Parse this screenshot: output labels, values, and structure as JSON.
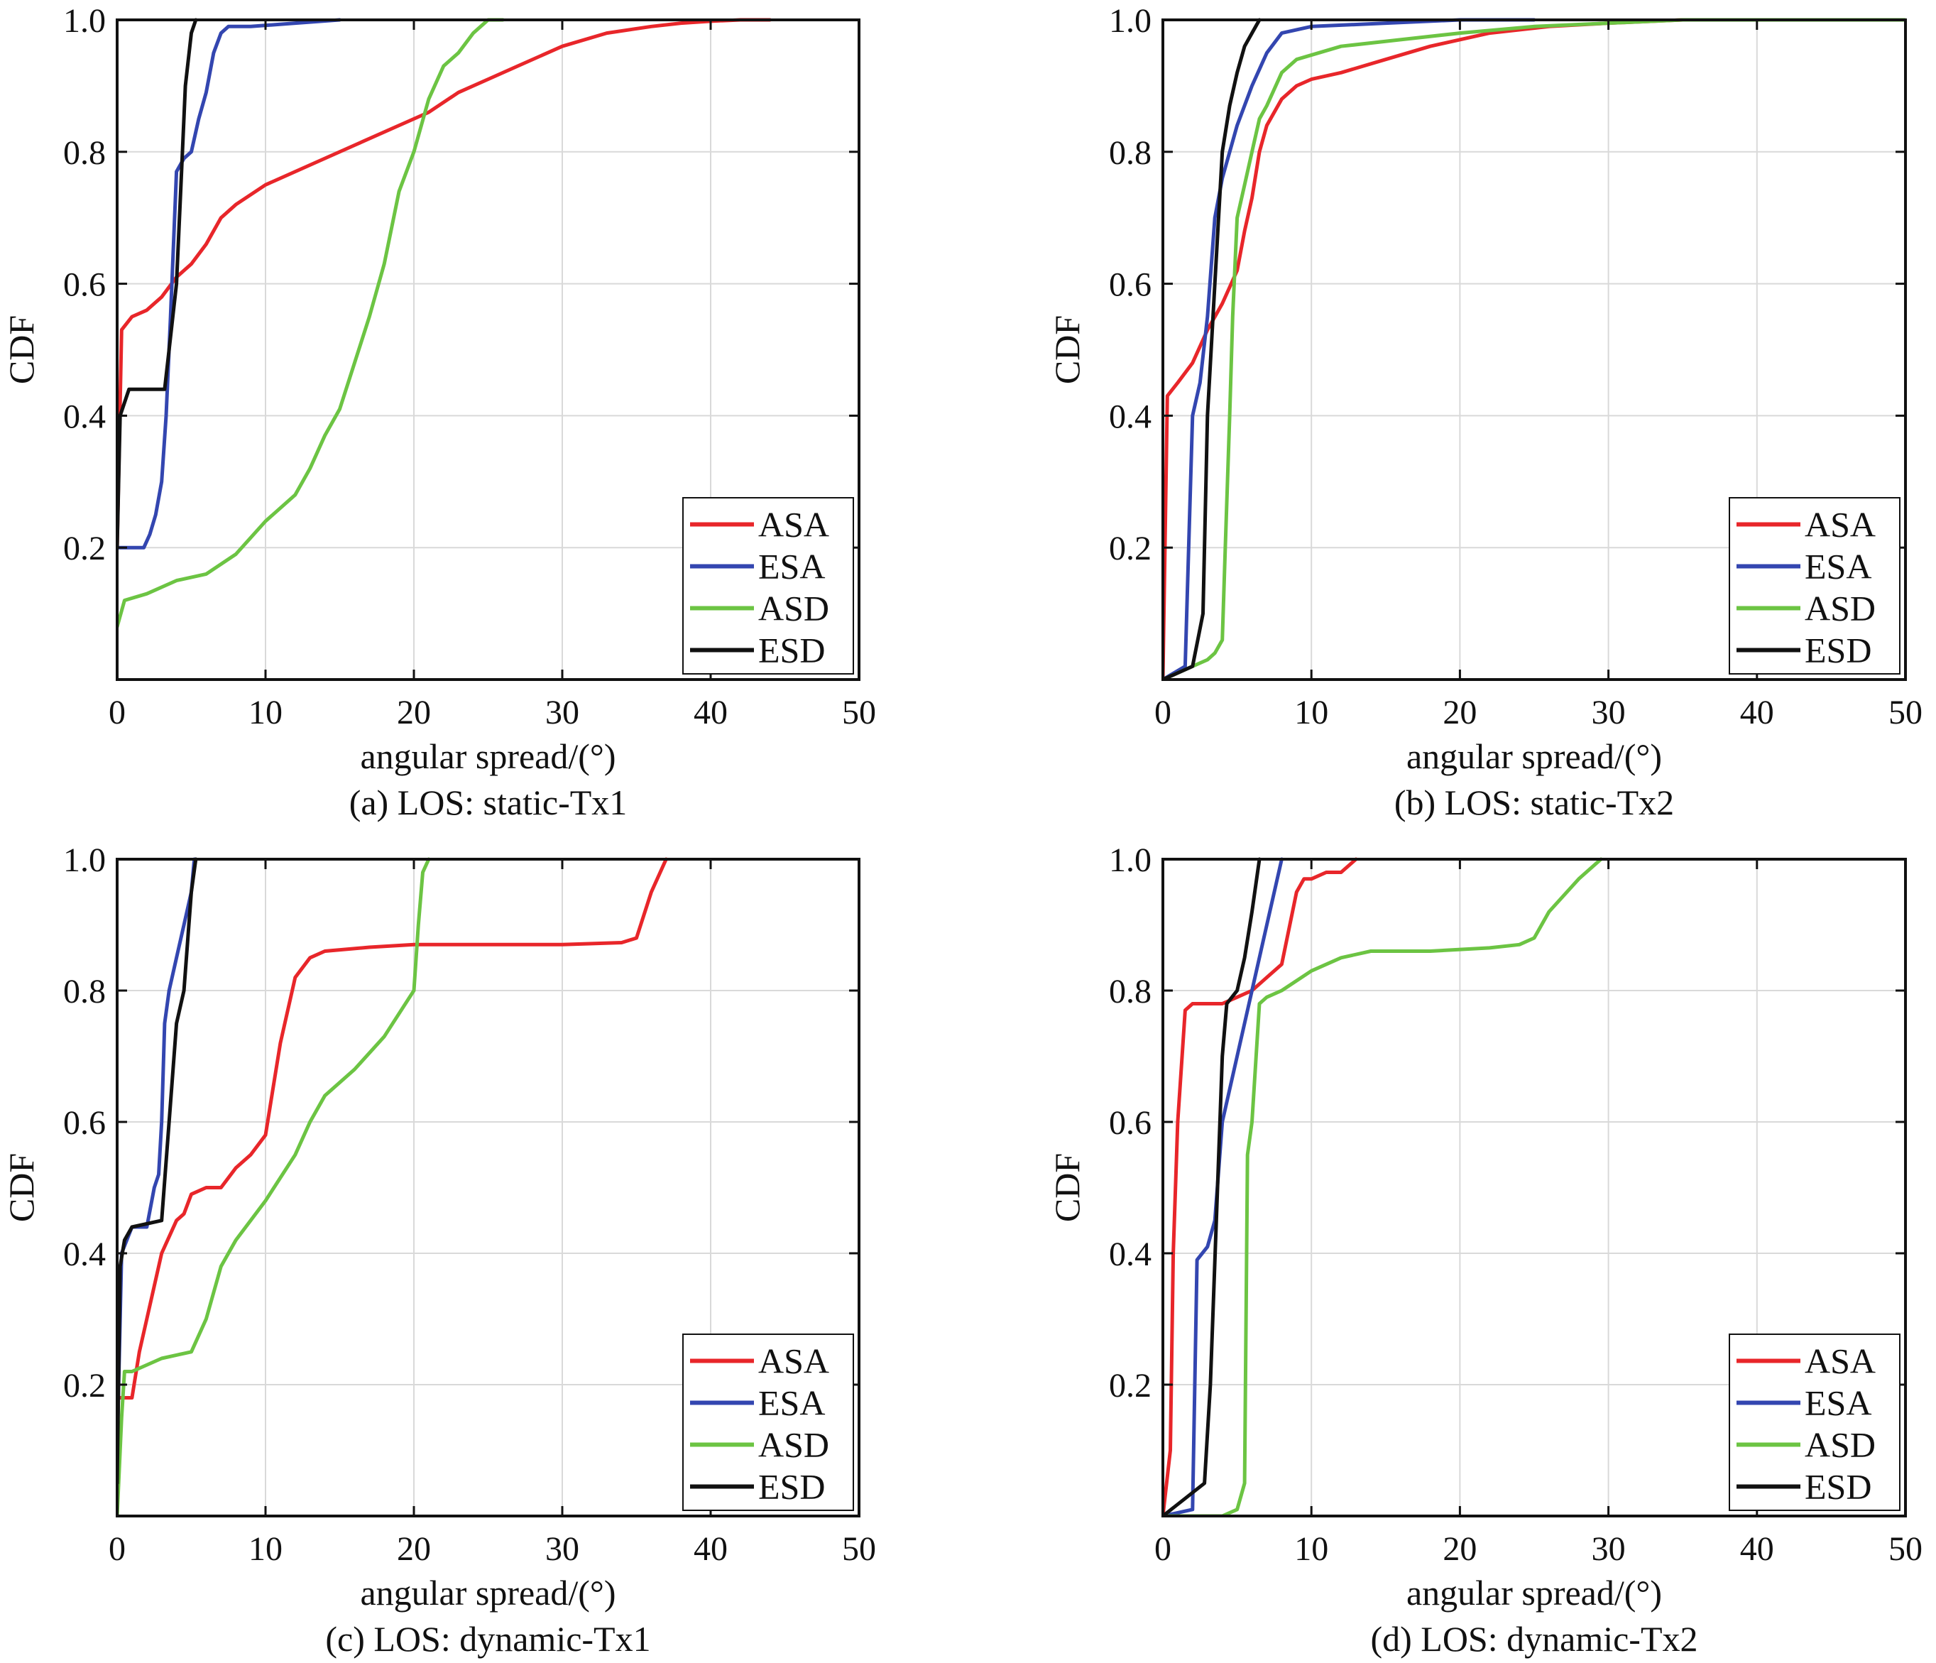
{
  "colors": {
    "ASA": "#e8262a",
    "ESA": "#3346b0",
    "ASD": "#6cc443",
    "ESD": "#111111",
    "grid": "#d9d9d9"
  },
  "chart_data": [
    {
      "type": "line",
      "caption": "(a) LOS: static-Tx1",
      "xlabel": "angular spread/(°)",
      "ylabel": "CDF",
      "xlim": [
        0,
        50
      ],
      "ylim": [
        0,
        1
      ],
      "xticks": [
        "0",
        "10",
        "20",
        "30",
        "40",
        "50"
      ],
      "yticks": [
        "0.2",
        "0.4",
        "0.6",
        "0.8",
        "1.0"
      ],
      "grid": true,
      "legend_position": "bottom-right",
      "series": [
        {
          "name": "ASA",
          "x": [
            0,
            0.3,
            1,
            2,
            3,
            4,
            5,
            6,
            7,
            8,
            10,
            13,
            16,
            19,
            21,
            23,
            25,
            27,
            30,
            33,
            36,
            38,
            40,
            42,
            44
          ],
          "y": [
            0.2,
            0.53,
            0.55,
            0.56,
            0.58,
            0.61,
            0.63,
            0.66,
            0.7,
            0.72,
            0.75,
            0.78,
            0.81,
            0.84,
            0.86,
            0.89,
            0.91,
            0.93,
            0.96,
            0.98,
            0.99,
            0.995,
            0.998,
            1.0,
            1.0
          ]
        },
        {
          "name": "ESA",
          "x": [
            0,
            0.5,
            1,
            1.8,
            2.2,
            2.6,
            3,
            3.3,
            3.6,
            4,
            4.5,
            5,
            5.5,
            6,
            6.5,
            7,
            7.5,
            9,
            12,
            15
          ],
          "y": [
            0.2,
            0.2,
            0.2,
            0.2,
            0.22,
            0.25,
            0.3,
            0.4,
            0.55,
            0.77,
            0.79,
            0.8,
            0.85,
            0.89,
            0.95,
            0.98,
            0.99,
            0.99,
            0.995,
            1.0
          ]
        },
        {
          "name": "ASD",
          "x": [
            0,
            0.5,
            2,
            4,
            6,
            8,
            10,
            12,
            13,
            14,
            15,
            16,
            17,
            18,
            19,
            20,
            21,
            22,
            23,
            24,
            25,
            26
          ],
          "y": [
            0.08,
            0.12,
            0.13,
            0.15,
            0.16,
            0.19,
            0.24,
            0.28,
            0.32,
            0.37,
            0.41,
            0.48,
            0.55,
            0.63,
            0.74,
            0.8,
            0.88,
            0.93,
            0.95,
            0.98,
            1.0,
            1.0
          ]
        },
        {
          "name": "ESD",
          "x": [
            0,
            0.2,
            0.8,
            1.5,
            2.5,
            3.2,
            3.5,
            4,
            4.3,
            4.6,
            5,
            5.3
          ],
          "y": [
            0.2,
            0.4,
            0.44,
            0.44,
            0.44,
            0.44,
            0.5,
            0.6,
            0.75,
            0.9,
            0.98,
            1.0
          ]
        }
      ]
    },
    {
      "type": "line",
      "caption": "(b) LOS: static-Tx2",
      "xlabel": "angular spread/(°)",
      "ylabel": "CDF",
      "xlim": [
        0,
        50
      ],
      "ylim": [
        0,
        1
      ],
      "xticks": [
        "0",
        "10",
        "20",
        "30",
        "40",
        "50"
      ],
      "yticks": [
        "0.2",
        "0.4",
        "0.6",
        "0.8",
        "1.0"
      ],
      "grid": true,
      "legend_position": "bottom-right",
      "series": [
        {
          "name": "ASA",
          "x": [
            0,
            0.3,
            1,
            2,
            3,
            4,
            5,
            5.5,
            6,
            6.5,
            7,
            8,
            9,
            10,
            12,
            15,
            18,
            22,
            26,
            30,
            35,
            40,
            45
          ],
          "y": [
            0,
            0.43,
            0.45,
            0.48,
            0.53,
            0.57,
            0.62,
            0.68,
            0.73,
            0.8,
            0.84,
            0.88,
            0.9,
            0.91,
            0.92,
            0.94,
            0.96,
            0.98,
            0.99,
            0.995,
            1.0,
            1.0,
            1.0
          ]
        },
        {
          "name": "ESA",
          "x": [
            0,
            1.5,
            2,
            2.5,
            3,
            3.5,
            4,
            5,
            6,
            7,
            8,
            10,
            15,
            20,
            25
          ],
          "y": [
            0,
            0.02,
            0.4,
            0.45,
            0.55,
            0.7,
            0.76,
            0.84,
            0.9,
            0.95,
            0.98,
            0.99,
            0.995,
            1.0,
            1.0
          ]
        },
        {
          "name": "ASD",
          "x": [
            0,
            1,
            2,
            3,
            3.5,
            4,
            4.2,
            4.5,
            4.7,
            5,
            5.5,
            6,
            6.5,
            7,
            8,
            9,
            12,
            16,
            20,
            25,
            30,
            35,
            50
          ],
          "y": [
            0,
            0.01,
            0.02,
            0.03,
            0.04,
            0.06,
            0.2,
            0.4,
            0.55,
            0.7,
            0.75,
            0.8,
            0.85,
            0.87,
            0.92,
            0.94,
            0.96,
            0.97,
            0.98,
            0.99,
            0.995,
            1.0,
            1.0
          ]
        },
        {
          "name": "ESD",
          "x": [
            0,
            2,
            2.7,
            3,
            3.5,
            4,
            4.5,
            5,
            5.5,
            6,
            6.5
          ],
          "y": [
            0,
            0.02,
            0.1,
            0.4,
            0.6,
            0.8,
            0.87,
            0.92,
            0.96,
            0.98,
            1.0
          ]
        }
      ]
    },
    {
      "type": "line",
      "caption": "(c) LOS: dynamic-Tx1",
      "xlabel": "angular spread/(°)",
      "ylabel": "CDF",
      "xlim": [
        0,
        50
      ],
      "ylim": [
        0,
        1
      ],
      "xticks": [
        "0",
        "10",
        "20",
        "30",
        "40",
        "50"
      ],
      "yticks": [
        "0.2",
        "0.4",
        "0.6",
        "0.8",
        "1.0"
      ],
      "grid": true,
      "legend_position": "bottom-right",
      "series": [
        {
          "name": "ASA",
          "x": [
            0,
            1,
            1.5,
            2,
            3,
            4,
            4.5,
            5,
            6,
            7,
            8,
            9,
            10,
            10.5,
            11,
            12,
            13,
            14,
            17,
            20,
            25,
            30,
            34,
            35,
            36,
            37
          ],
          "y": [
            0.18,
            0.18,
            0.25,
            0.3,
            0.4,
            0.45,
            0.46,
            0.49,
            0.5,
            0.5,
            0.53,
            0.55,
            0.58,
            0.65,
            0.72,
            0.82,
            0.85,
            0.86,
            0.866,
            0.87,
            0.87,
            0.87,
            0.873,
            0.88,
            0.95,
            1.0
          ]
        },
        {
          "name": "ESA",
          "x": [
            0,
            0.3,
            1,
            2,
            2.5,
            2.8,
            3,
            3.2,
            3.5,
            4,
            4.5,
            5,
            5.2
          ],
          "y": [
            0.1,
            0.4,
            0.44,
            0.44,
            0.5,
            0.52,
            0.6,
            0.75,
            0.8,
            0.85,
            0.9,
            0.95,
            1.0
          ]
        },
        {
          "name": "ASD",
          "x": [
            0,
            0.3,
            0.5,
            1,
            3,
            5,
            6,
            7,
            8,
            10,
            12,
            13,
            14,
            16,
            18,
            20,
            20.3,
            20.6,
            21
          ],
          "y": [
            0,
            0.15,
            0.22,
            0.22,
            0.24,
            0.25,
            0.3,
            0.38,
            0.42,
            0.48,
            0.55,
            0.6,
            0.64,
            0.68,
            0.73,
            0.8,
            0.9,
            0.98,
            1.0
          ]
        },
        {
          "name": "ESD",
          "x": [
            0,
            0.2,
            0.5,
            1,
            3,
            3.5,
            4,
            4.5,
            5,
            5.3
          ],
          "y": [
            0.05,
            0.38,
            0.42,
            0.44,
            0.45,
            0.6,
            0.75,
            0.8,
            0.95,
            1.0
          ]
        }
      ]
    },
    {
      "type": "line",
      "caption": "(d) LOS: dynamic-Tx2",
      "xlabel": "angular spread/(°)",
      "ylabel": "CDF",
      "xlim": [
        0,
        50
      ],
      "ylim": [
        0,
        1
      ],
      "xticks": [
        "0",
        "10",
        "20",
        "30",
        "40",
        "50"
      ],
      "yticks": [
        "0.2",
        "0.4",
        "0.6",
        "0.8",
        "1.0"
      ],
      "grid": true,
      "legend_position": "bottom-right",
      "series": [
        {
          "name": "ASA",
          "x": [
            0,
            0.5,
            0.7,
            1,
            1.5,
            2,
            3,
            4,
            5,
            6,
            7,
            8,
            9,
            9.5,
            10,
            11,
            12,
            13
          ],
          "y": [
            0,
            0.1,
            0.4,
            0.6,
            0.77,
            0.78,
            0.78,
            0.78,
            0.79,
            0.8,
            0.82,
            0.84,
            0.95,
            0.97,
            0.97,
            0.98,
            0.98,
            1.0
          ]
        },
        {
          "name": "ESA",
          "x": [
            0,
            2,
            2.3,
            3,
            3.5,
            4,
            5,
            6,
            7,
            8
          ],
          "y": [
            0,
            0.01,
            0.39,
            0.41,
            0.45,
            0.6,
            0.7,
            0.8,
            0.9,
            1.0
          ]
        },
        {
          "name": "ASD",
          "x": [
            0,
            4,
            5,
            5.5,
            5.7,
            6,
            6.5,
            7,
            8,
            10,
            12,
            14,
            18,
            22,
            24,
            25,
            26,
            28,
            29.5
          ],
          "y": [
            0,
            0,
            0.01,
            0.05,
            0.55,
            0.6,
            0.78,
            0.79,
            0.8,
            0.83,
            0.85,
            0.86,
            0.86,
            0.865,
            0.87,
            0.88,
            0.92,
            0.97,
            1.0
          ]
        },
        {
          "name": "ESD",
          "x": [
            0,
            2.8,
            3.2,
            3.6,
            4,
            4.3,
            5,
            5.5,
            6,
            6.5
          ],
          "y": [
            0,
            0.05,
            0.2,
            0.45,
            0.7,
            0.78,
            0.8,
            0.85,
            0.92,
            1.0
          ]
        }
      ]
    }
  ]
}
